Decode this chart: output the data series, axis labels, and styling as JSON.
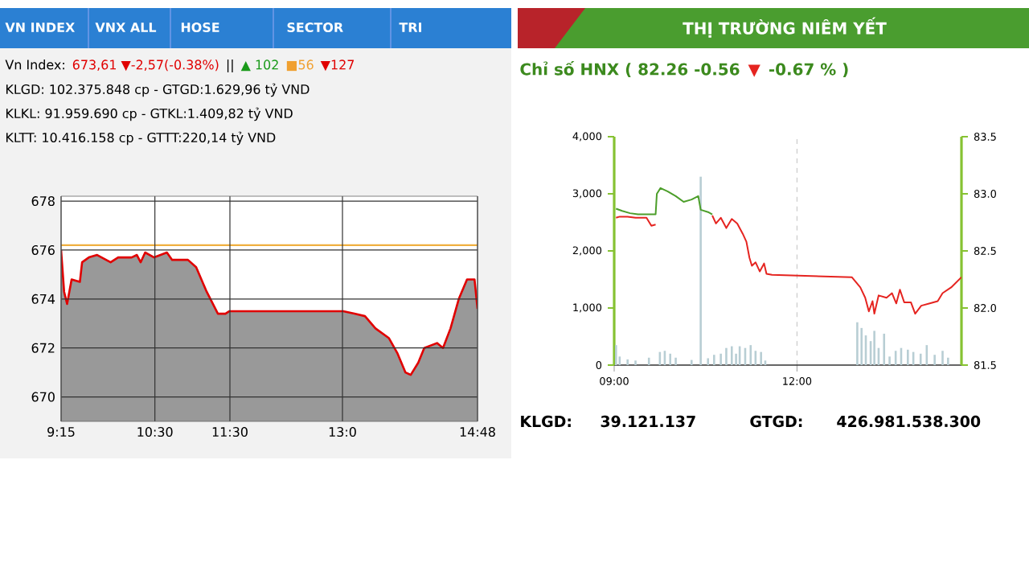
{
  "chart_data": [
    {
      "type": "area",
      "color": "#e00000",
      "grid": true,
      "x": [
        9.25,
        9.29,
        9.33,
        9.39,
        9.5,
        9.53,
        9.62,
        9.73,
        9.91,
        10.01,
        10.19,
        10.26,
        10.31,
        10.37,
        10.49,
        10.66,
        10.73,
        10.94,
        11.05,
        11.19,
        11.34,
        11.44,
        11.49,
        13.01,
        13.16,
        13.3,
        13.44,
        13.62,
        13.73,
        13.84,
        13.91,
        14.01,
        14.09,
        14.26,
        14.34,
        14.44,
        14.55,
        14.66,
        14.76,
        14.8
      ],
      "values": [
        676.0,
        674.3,
        673.8,
        674.8,
        674.7,
        675.5,
        675.7,
        675.8,
        675.5,
        675.7,
        675.7,
        675.8,
        675.5,
        675.9,
        675.7,
        675.9,
        675.6,
        675.6,
        675.3,
        674.3,
        673.4,
        673.4,
        673.5,
        673.5,
        673.4,
        673.3,
        672.8,
        672.4,
        671.8,
        671.0,
        670.9,
        671.4,
        672.0,
        672.2,
        672.0,
        672.8,
        674.0,
        674.8,
        674.8,
        673.6
      ],
      "xlim": [
        9.25,
        14.8
      ],
      "ylim": [
        669,
        678.2
      ],
      "xticks": [
        {
          "value": 9.25,
          "label": "9:15"
        },
        {
          "value": 10.5,
          "label": "10:30"
        },
        {
          "value": 11.5,
          "label": "11:30"
        },
        {
          "value": 13,
          "label": "13:0"
        },
        {
          "value": 14.8,
          "label": "14:48"
        }
      ],
      "yticks": [
        670,
        672,
        674,
        676,
        678
      ],
      "ref_lines": [
        {
          "axis": "y",
          "value": 676.2,
          "color": "#f0b040"
        }
      ],
      "annotations": [
        "VN INDEX",
        "VNX ALL",
        "HOSE",
        "SECTOR",
        "TRI",
        "Vn Index:",
        "673,61 ▼-2,57(-0.38%)",
        "||",
        "▲ 102",
        "■56",
        "▼127",
        "KLGD: 102.375.848 cp - GTGD:1.629,96 tỷ VND",
        "KLKL: 91.959.690 cp - GTKL:1.409,82 tỷ VND",
        "KLTT: 10.416.158 cp - GTTT:220,14 tỷ VND"
      ]
    },
    {
      "type": "line",
      "title": "THỊ TRƯỜNG NIÊM YẾT",
      "grid": "x",
      "series": [
        {
          "type": "bar",
          "color": "#b8ced4",
          "x": [
            9.03,
            9.09,
            9.22,
            9.35,
            9.57,
            9.75,
            9.83,
            9.92,
            10.01,
            10.27,
            10.42,
            10.54,
            10.64,
            10.75,
            10.84,
            10.93,
            11.0,
            11.06,
            11.15,
            11.24,
            11.32,
            11.41,
            11.48,
            12.99,
            13.06,
            13.13,
            13.21,
            13.27,
            13.34,
            13.43,
            13.52,
            13.62,
            13.71,
            13.82,
            13.91,
            14.03,
            14.13,
            14.26,
            14.39,
            14.48
          ],
          "values": [
            350,
            150,
            100,
            80,
            130,
            230,
            250,
            200,
            130,
            90,
            3300,
            120,
            180,
            200,
            300,
            330,
            200,
            330,
            300,
            350,
            250,
            230,
            80,
            750,
            650,
            520,
            420,
            600,
            300,
            550,
            150,
            250,
            300,
            270,
            230,
            200,
            350,
            180,
            250,
            130
          ]
        },
        {
          "type": "line",
          "axis": "y2",
          "color": "#4c9e2a",
          "x": [
            9.03,
            9.13,
            9.26,
            9.39,
            9.68,
            9.7,
            9.76,
            9.88,
            10.01,
            10.14,
            10.27,
            10.38,
            10.42,
            10.54,
            10.61
          ],
          "values": [
            82.87,
            82.85,
            82.83,
            82.82,
            82.82,
            83.0,
            83.05,
            83.02,
            82.98,
            82.93,
            82.95,
            82.98,
            82.86,
            82.84,
            82.82
          ]
        },
        {
          "type": "line",
          "axis": "y2",
          "color": "#e52420",
          "x": [
            9.03,
            9.09,
            9.22,
            9.35,
            9.53,
            9.61,
            9.68,
            10.0,
            10.61,
            10.67,
            10.75,
            10.84,
            10.93,
            11.02,
            11.11,
            11.17,
            11.22,
            11.26,
            11.32,
            11.39,
            11.46,
            11.5,
            11.59,
            12.9,
            13.04,
            13.12,
            13.18,
            13.24,
            13.27,
            13.34,
            13.47,
            13.56,
            13.63,
            13.69,
            13.76,
            13.87,
            13.94,
            14.04,
            14.18,
            14.31,
            14.39,
            14.53,
            14.7
          ],
          "values": [
            82.79,
            82.8,
            82.8,
            82.79,
            82.79,
            82.72,
            82.73,
            null,
            82.81,
            82.74,
            82.79,
            82.7,
            82.78,
            82.74,
            82.65,
            82.58,
            82.44,
            82.37,
            82.4,
            82.32,
            82.39,
            82.3,
            82.29,
            82.27,
            82.18,
            82.09,
            81.97,
            82.06,
            81.95,
            82.11,
            82.09,
            82.13,
            82.04,
            82.16,
            82.05,
            82.05,
            81.95,
            82.02,
            82.04,
            82.06,
            82.13,
            82.18,
            82.27
          ]
        }
      ],
      "xlim": [
        9,
        14.7
      ],
      "ylim": [
        0,
        4000
      ],
      "y2lim": [
        81.5,
        83.5
      ],
      "xticks": [
        {
          "value": 9,
          "label": "09:00"
        },
        {
          "value": 12,
          "label": "12:00"
        }
      ],
      "yticks": [
        0,
        {
          "value": 1000,
          "label": "1,000"
        },
        {
          "value": 2000,
          "label": "2,000"
        },
        {
          "value": 3000,
          "label": "3,000"
        },
        {
          "value": 4000,
          "label": "4,000"
        }
      ],
      "y2ticks": [
        81.5,
        {
          "value": 82,
          "label": "82.0"
        },
        82.5,
        {
          "value": 83,
          "label": "83.0"
        },
        83.5
      ],
      "annotations": [
        "Chỉ số HNX ( 82.26   -0.56",
        "▼",
        "-0.67 % )",
        "KLGD:",
        "39.121.137",
        "GTGD:",
        "426.981.538.300"
      ]
    }
  ]
}
